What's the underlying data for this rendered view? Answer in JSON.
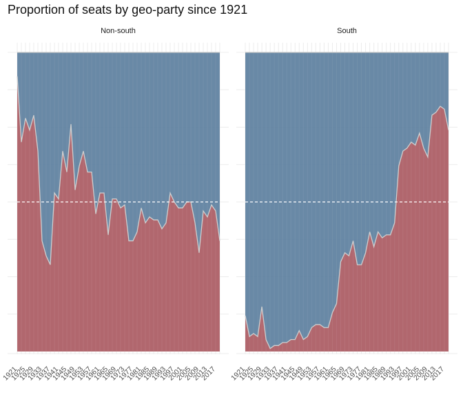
{
  "title": "Proportion of seats by geo-party since 1921",
  "colors": {
    "republican": "#b5656a",
    "democrat": "#5c7f9e",
    "line": "#cfcfcf",
    "reference": "#ffffff"
  },
  "chart_data": {
    "type": "area",
    "title": "Proportion of seats by geo-party since 1921",
    "stacked": true,
    "ylim": [
      0,
      1
    ],
    "reference_line": 0.5,
    "x": [
      1921,
      1923,
      1925,
      1927,
      1929,
      1931,
      1933,
      1935,
      1937,
      1939,
      1941,
      1943,
      1945,
      1947,
      1949,
      1951,
      1953,
      1955,
      1957,
      1959,
      1961,
      1963,
      1965,
      1967,
      1969,
      1971,
      1973,
      1975,
      1977,
      1979,
      1981,
      1983,
      1985,
      1987,
      1989,
      1991,
      1993,
      1995,
      1997,
      1999,
      2001,
      2003,
      2005,
      2007,
      2009,
      2011,
      2013,
      2015,
      2017,
      2019
    ],
    "x_tick_labels": [
      "1921",
      "1925",
      "1929",
      "1933",
      "1937",
      "1941",
      "1945",
      "1949",
      "1953",
      "1957",
      "1961",
      "1965",
      "1969",
      "1973",
      "1977",
      "1981",
      "1985",
      "1989",
      "1993",
      "1997",
      "2001",
      "2005",
      "2009",
      "2013",
      "2017"
    ],
    "panels": [
      {
        "name": "Non-south",
        "values": [
          0.92,
          0.7,
          0.78,
          0.74,
          0.79,
          0.67,
          0.37,
          0.32,
          0.29,
          0.53,
          0.51,
          0.67,
          0.6,
          0.76,
          0.54,
          0.62,
          0.67,
          0.6,
          0.6,
          0.46,
          0.53,
          0.53,
          0.39,
          0.51,
          0.51,
          0.48,
          0.49,
          0.37,
          0.37,
          0.4,
          0.48,
          0.43,
          0.45,
          0.44,
          0.44,
          0.41,
          0.43,
          0.53,
          0.5,
          0.48,
          0.48,
          0.5,
          0.5,
          0.43,
          0.33,
          0.47,
          0.45,
          0.49,
          0.47,
          0.37
        ]
      },
      {
        "name": "South",
        "values": [
          0.12,
          0.05,
          0.06,
          0.05,
          0.15,
          0.04,
          0.01,
          0.02,
          0.02,
          0.03,
          0.03,
          0.04,
          0.04,
          0.07,
          0.04,
          0.05,
          0.08,
          0.09,
          0.09,
          0.08,
          0.08,
          0.13,
          0.16,
          0.3,
          0.33,
          0.32,
          0.37,
          0.29,
          0.29,
          0.33,
          0.4,
          0.35,
          0.4,
          0.38,
          0.39,
          0.39,
          0.43,
          0.62,
          0.67,
          0.68,
          0.7,
          0.69,
          0.73,
          0.68,
          0.65,
          0.79,
          0.8,
          0.82,
          0.81,
          0.74
        ]
      }
    ]
  }
}
